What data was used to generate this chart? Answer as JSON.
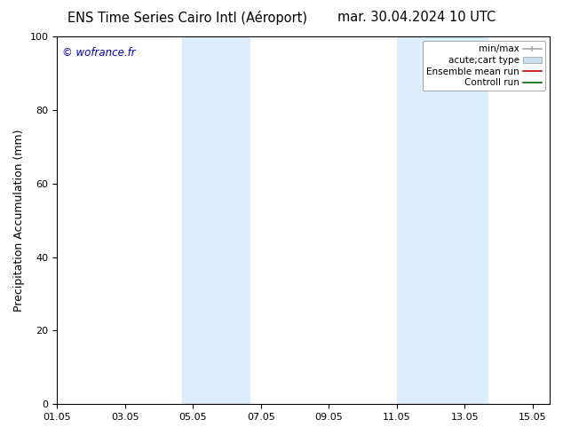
{
  "title_left": "ENS Time Series Cairo Intl (Aéroport)",
  "title_right": "mar. 30.04.2024 10 UTC",
  "ylabel": "Precipitation Accumulation (mm)",
  "watermark": "© wofrance.fr",
  "watermark_color": "#0000cc",
  "xlim_start": 0.0,
  "xlim_end": 14.5,
  "ylim": [
    0,
    100
  ],
  "yticks": [
    0,
    20,
    40,
    60,
    80,
    100
  ],
  "xtick_positions": [
    0,
    2,
    4,
    6,
    8,
    10,
    12,
    14
  ],
  "xtick_labels": [
    "01.05",
    "03.05",
    "05.05",
    "07.05",
    "09.05",
    "11.05",
    "13.05",
    "15.05"
  ],
  "shaded_bands": [
    {
      "x_start": 3.67,
      "x_end": 5.67
    },
    {
      "x_start": 10.0,
      "x_end": 12.67
    }
  ],
  "shade_color": "#ddeeff",
  "background_color": "#ffffff",
  "legend_entries": [
    {
      "label": "min/max",
      "color": "#aaaaaa",
      "lw": 1.2,
      "style": "line_with_bar"
    },
    {
      "label": "acute;cart type",
      "color": "#cce0f0",
      "lw": 8,
      "style": "thick"
    },
    {
      "label": "Ensemble mean run",
      "color": "#cc0000",
      "lw": 1.2,
      "style": "line"
    },
    {
      "label": "Controll run",
      "color": "#006600",
      "lw": 1.2,
      "style": "line"
    }
  ],
  "spine_color": "#000000",
  "title_fontsize": 10.5,
  "axis_fontsize": 9,
  "tick_fontsize": 8,
  "legend_fontsize": 7.5
}
